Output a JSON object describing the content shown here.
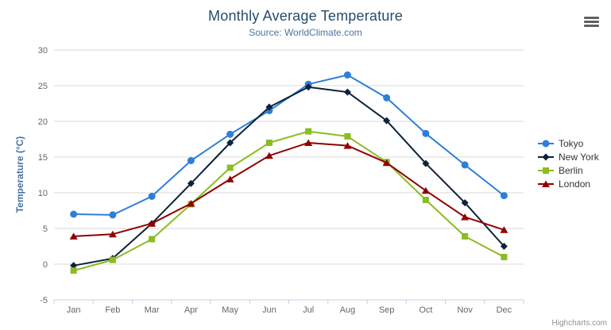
{
  "title": "Monthly Average Temperature",
  "subtitle": "Source: WorldClimate.com",
  "credits": "Highcharts.com",
  "colors": {
    "title": "#274b6d",
    "subtitle": "#4d759e",
    "y_axis_title": "#4572a7",
    "tick_labels": "#666666",
    "gridline": "#d8d8d8",
    "axis_line": "#c0d0e0",
    "tokyo": "#2f7ed8",
    "new_york": "#0d233a",
    "berlin": "#8bbc21",
    "london": "#910000"
  },
  "chart_data": {
    "type": "line",
    "title": "Monthly Average Temperature",
    "subtitle": "Source: WorldClimate.com",
    "xlabel": "",
    "ylabel": "Temperature (°C)",
    "ylim": [
      -5,
      30
    ],
    "yticks": [
      -5,
      0,
      5,
      10,
      15,
      20,
      25,
      30
    ],
    "grid": true,
    "legend_position": "right",
    "categories": [
      "Jan",
      "Feb",
      "Mar",
      "Apr",
      "May",
      "Jun",
      "Jul",
      "Aug",
      "Sep",
      "Oct",
      "Nov",
      "Dec"
    ],
    "series": [
      {
        "name": "Tokyo",
        "color": "#2f7ed8",
        "marker": "circle",
        "values": [
          7.0,
          6.9,
          9.5,
          14.5,
          18.2,
          21.5,
          25.2,
          26.5,
          23.3,
          18.3,
          13.9,
          9.6
        ]
      },
      {
        "name": "New York",
        "color": "#0d233a",
        "marker": "diamond",
        "values": [
          -0.2,
          0.8,
          5.7,
          11.3,
          17.0,
          22.0,
          24.8,
          24.1,
          20.1,
          14.1,
          8.6,
          2.5
        ]
      },
      {
        "name": "Berlin",
        "color": "#8bbc21",
        "marker": "square",
        "values": [
          -0.9,
          0.6,
          3.5,
          8.4,
          13.5,
          17.0,
          18.6,
          17.9,
          14.3,
          9.0,
          3.9,
          1.0
        ]
      },
      {
        "name": "London",
        "color": "#910000",
        "marker": "triangle",
        "values": [
          3.9,
          4.2,
          5.7,
          8.5,
          11.9,
          15.2,
          17.0,
          16.6,
          14.2,
          10.3,
          6.6,
          4.8
        ]
      }
    ]
  }
}
